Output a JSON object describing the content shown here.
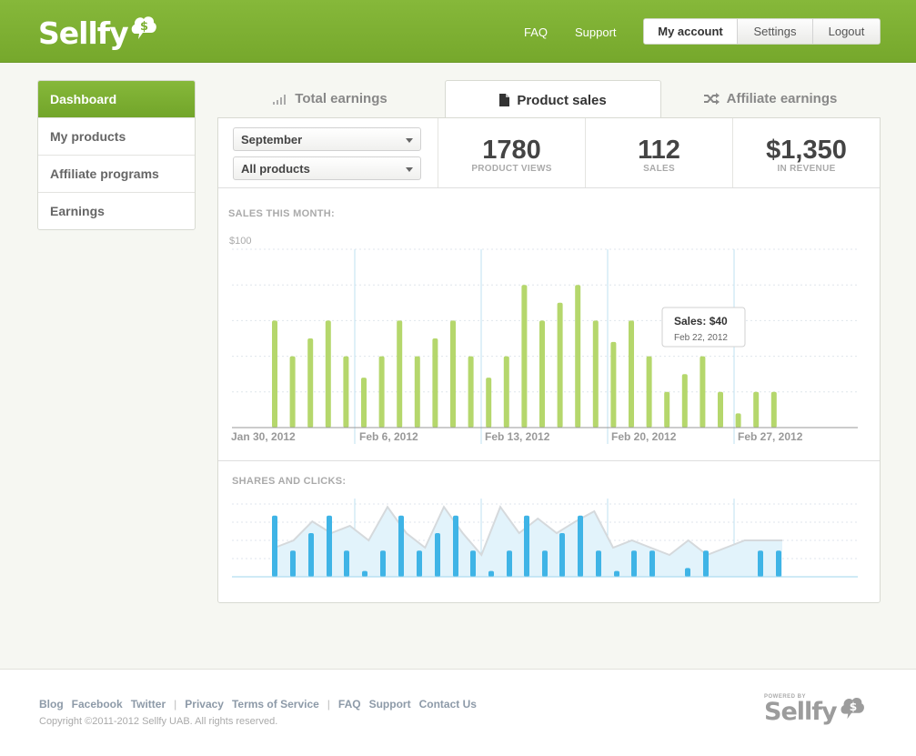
{
  "header": {
    "logo_text": "Sellfy",
    "links": [
      "FAQ",
      "Support"
    ],
    "account_buttons": [
      "My account",
      "Settings",
      "Logout"
    ]
  },
  "sidebar": {
    "items": [
      {
        "label": "Dashboard",
        "active": true
      },
      {
        "label": "My products",
        "active": false
      },
      {
        "label": "Affiliate programs",
        "active": false
      },
      {
        "label": "Earnings",
        "active": false
      }
    ]
  },
  "tabs": [
    {
      "label": "Total earnings",
      "icon": "bar-chart-icon",
      "active": false
    },
    {
      "label": "Product sales",
      "icon": "document-icon",
      "active": true
    },
    {
      "label": "Affiliate earnings",
      "icon": "shuffle-icon",
      "active": false
    }
  ],
  "filters": {
    "month": "September",
    "product": "All products"
  },
  "stats": [
    {
      "value": "1780",
      "label": "PRODUCT VIEWS"
    },
    {
      "value": "112",
      "label": "SALES"
    },
    {
      "value": "$1,350",
      "label": "IN REVENUE"
    }
  ],
  "sales_chart": {
    "title": "SALES THIS MONTH:",
    "y_label": "$100",
    "x_ticks": [
      "Jan 30, 2012",
      "Feb 6, 2012",
      "Feb 13, 2012",
      "Feb 20, 2012",
      "Feb 27, 2012"
    ],
    "tooltip": {
      "title": "Sales: $40",
      "date": "Feb 22, 2012"
    }
  },
  "shares_chart": {
    "title": "SHARES AND CLICKS:"
  },
  "chart_data": [
    {
      "type": "bar",
      "title": "SALES THIS MONTH:",
      "ylabel": "$100",
      "ylim": [
        0,
        100
      ],
      "grid": true,
      "color": "#b5d76c",
      "x_ticks": [
        "Jan 30, 2012",
        "Feb 6, 2012",
        "Feb 13, 2012",
        "Feb 20, 2012",
        "Feb 27, 2012"
      ],
      "values": [
        60,
        40,
        50,
        60,
        40,
        28,
        40,
        60,
        40,
        50,
        60,
        40,
        28,
        40,
        80,
        60,
        70,
        80,
        60,
        48,
        60,
        40,
        20,
        30,
        40,
        20,
        8,
        20,
        20
      ]
    },
    {
      "type": "bar",
      "title": "SHARES AND CLICKS:",
      "bar_color": "#3fb4e6",
      "area_color": "#e2f3fb",
      "ylim": [
        0,
        100
      ],
      "bars": [
        84,
        36,
        60,
        84,
        36,
        8,
        36,
        84,
        36,
        60,
        84,
        36,
        8,
        36,
        84,
        36,
        60,
        84,
        36,
        8,
        36,
        36,
        12,
        36,
        36,
        36
      ],
      "clicks": [
        40,
        50,
        76,
        60,
        70,
        50,
        96,
        60,
        40,
        96,
        60,
        30,
        96,
        60,
        80,
        60,
        76,
        90,
        40,
        50,
        40,
        30,
        50,
        30,
        40,
        50,
        50,
        50
      ]
    }
  ]
}
